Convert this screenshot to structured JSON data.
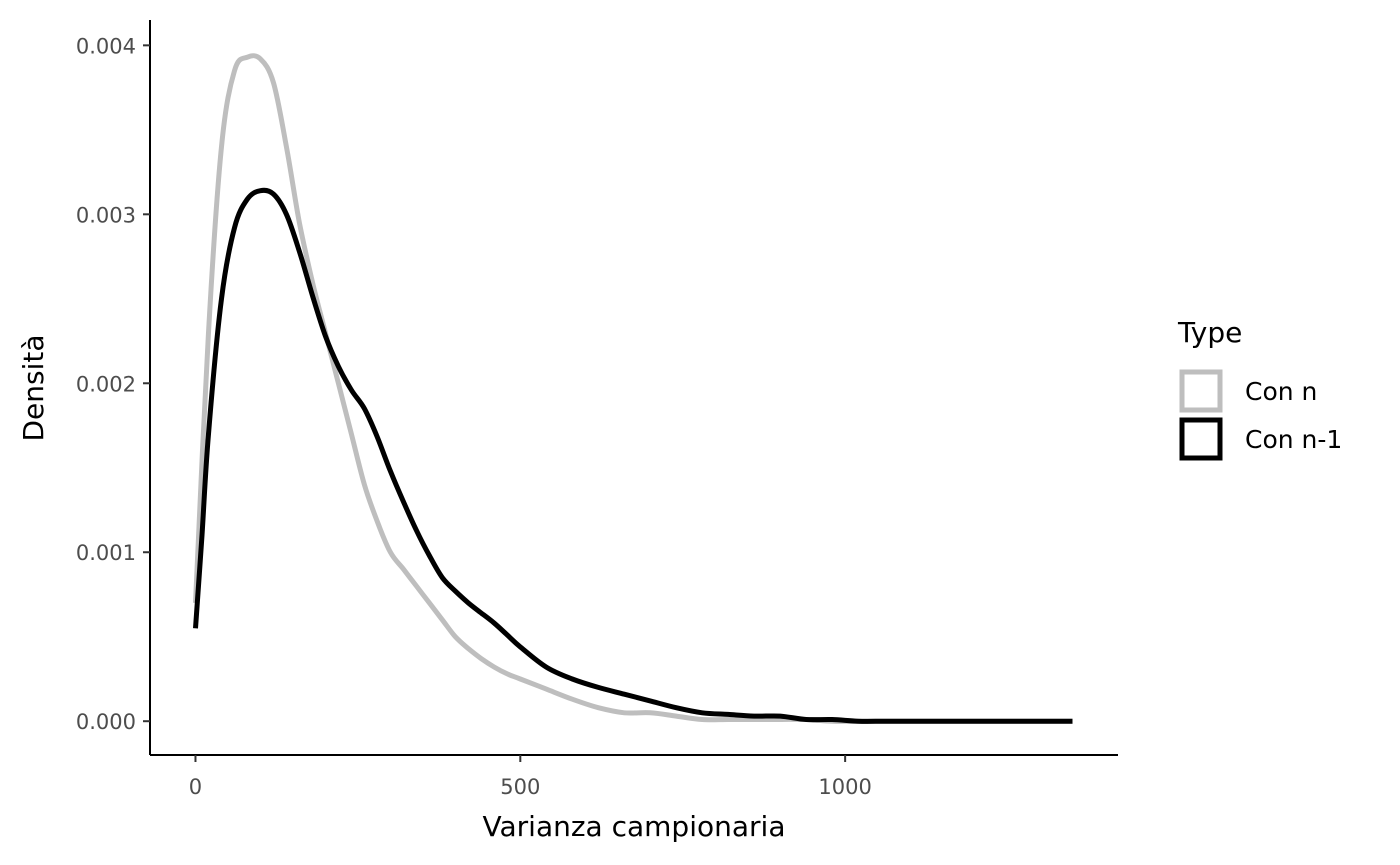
{
  "chart_data": {
    "type": "line",
    "title": "",
    "xlabel": "Varianza campionaria",
    "ylabel": "Densità",
    "xlim": [
      -70,
      1420
    ],
    "ylim": [
      -0.0002,
      0.00415
    ],
    "x_ticks": [
      0,
      500,
      1000
    ],
    "x_tick_labels": [
      "0",
      "500",
      "1000"
    ],
    "y_ticks": [
      0.0,
      0.001,
      0.002,
      0.003,
      0.004
    ],
    "y_tick_labels": [
      "0.000",
      "0.001",
      "0.002",
      "0.003",
      "0.004"
    ],
    "grid": false,
    "legend": {
      "title": "Type",
      "position": "right"
    },
    "series": [
      {
        "name": "Con n",
        "color": "#bebebe",
        "x": [
          0,
          20,
          40,
          60,
          80,
          100,
          120,
          140,
          160,
          180,
          200,
          220,
          240,
          260,
          280,
          300,
          320,
          340,
          360,
          380,
          400,
          420,
          440,
          460,
          480,
          500,
          540,
          580,
          620,
          660,
          700,
          740,
          780,
          820,
          860,
          900,
          940,
          980,
          1020,
          1060,
          1100,
          1150,
          1200,
          1250,
          1300,
          1350
        ],
        "y": [
          0.0007,
          0.0023,
          0.0034,
          0.00385,
          0.00393,
          0.00392,
          0.00378,
          0.0034,
          0.00295,
          0.0026,
          0.0023,
          0.002,
          0.0017,
          0.0014,
          0.00118,
          0.001,
          0.0009,
          0.0008,
          0.0007,
          0.0006,
          0.0005,
          0.00043,
          0.00037,
          0.00032,
          0.00028,
          0.00025,
          0.00019,
          0.00013,
          8e-05,
          5e-05,
          5e-05,
          3e-05,
          1e-05,
          1e-05,
          1e-05,
          1e-05,
          1e-05,
          0.0,
          0.0,
          0.0,
          0.0,
          0.0,
          0.0,
          0.0,
          0.0,
          0.0
        ]
      },
      {
        "name": "Con n-1",
        "color": "#000000",
        "x": [
          0,
          10,
          20,
          40,
          60,
          80,
          100,
          120,
          140,
          160,
          180,
          200,
          220,
          240,
          260,
          280,
          300,
          320,
          340,
          360,
          380,
          400,
          420,
          440,
          460,
          480,
          500,
          540,
          580,
          620,
          660,
          700,
          740,
          780,
          820,
          860,
          900,
          940,
          980,
          1020,
          1060,
          1100,
          1150,
          1200,
          1250,
          1300,
          1350
        ],
        "y": [
          0.00055,
          0.0011,
          0.0017,
          0.0025,
          0.00292,
          0.00309,
          0.00314,
          0.00312,
          0.003,
          0.00278,
          0.00252,
          0.00228,
          0.0021,
          0.00196,
          0.00185,
          0.00168,
          0.00148,
          0.0013,
          0.00113,
          0.00098,
          0.00085,
          0.00077,
          0.0007,
          0.00064,
          0.00058,
          0.00051,
          0.00044,
          0.00032,
          0.00025,
          0.0002,
          0.00016,
          0.00012,
          8e-05,
          5e-05,
          4e-05,
          3e-05,
          3e-05,
          1e-05,
          1e-05,
          0.0,
          0.0,
          0.0,
          0.0,
          0.0,
          0.0,
          0.0,
          0.0
        ]
      }
    ]
  }
}
